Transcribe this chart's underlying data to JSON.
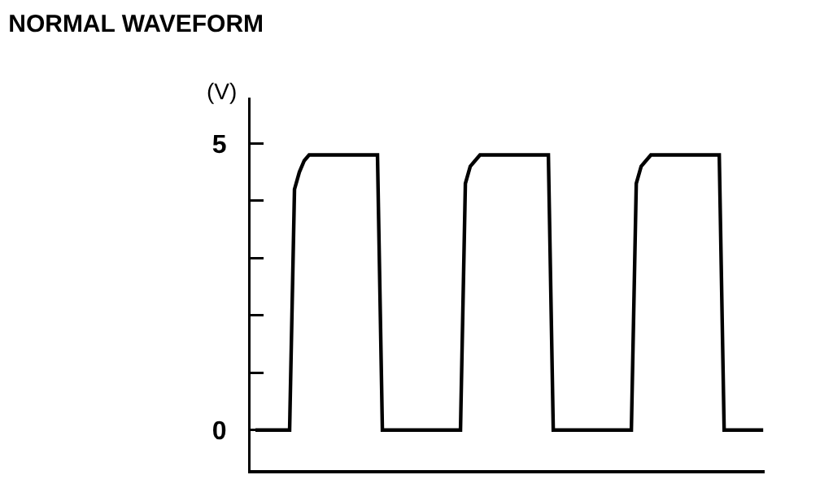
{
  "chart_data": {
    "type": "line",
    "title": "NORMAL WAVEFORM",
    "ylabel": "(V)",
    "categories": [
      null,
      null,
      null,
      null,
      null,
      null,
      null,
      null,
      null,
      null,
      null,
      null,
      null,
      null,
      null,
      null,
      null,
      null,
      null,
      null,
      null,
      null,
      null,
      null,
      null,
      null,
      null,
      null,
      null,
      null,
      null,
      null,
      null,
      null,
      null,
      null,
      null,
      null,
      null,
      null,
      null,
      null,
      null,
      null,
      null,
      null,
      null,
      null,
      null,
      null,
      null,
      null,
      null,
      null,
      null,
      null,
      null,
      null,
      null,
      null,
      null,
      null,
      null,
      null,
      null,
      null,
      null,
      null,
      null,
      null,
      null,
      null,
      null,
      null,
      null,
      null,
      null,
      null,
      null,
      null,
      null,
      null,
      null,
      null,
      null,
      null,
      null,
      null,
      null,
      null,
      null,
      null,
      null,
      null,
      null,
      null,
      null,
      null,
      null,
      null,
      null,
      null,
      null,
      null,
      null
    ],
    "series": [
      {
        "color": "#000000",
        "values": [
          0,
          0,
          0,
          0,
          0,
          0,
          0,
          0,
          4.2,
          4.5,
          4.7,
          4.8,
          4.8,
          4.8,
          4.8,
          4.8,
          4.8,
          4.8,
          4.8,
          4.8,
          4.8,
          4.8,
          4.8,
          4.8,
          4.8,
          4.8,
          0,
          0,
          0,
          0,
          0,
          0,
          0,
          0,
          0,
          0,
          0,
          0,
          0,
          0,
          0,
          0,
          0,
          4.3,
          4.6,
          4.7,
          4.8,
          4.8,
          4.8,
          4.8,
          4.8,
          4.8,
          4.8,
          4.8,
          4.8,
          4.8,
          4.8,
          4.8,
          4.8,
          4.8,
          4.8,
          0,
          0,
          0,
          0,
          0,
          0,
          0,
          0,
          0,
          0,
          0,
          0,
          0,
          0,
          0,
          0,
          0,
          4.3,
          4.6,
          4.7,
          4.8,
          4.8,
          4.8,
          4.8,
          4.8,
          4.8,
          4.8,
          4.8,
          4.8,
          4.8,
          4.8,
          4.8,
          4.8,
          4.8,
          4.8,
          0,
          0,
          0,
          0,
          0,
          0,
          0,
          0,
          0
        ]
      }
    ],
    "ylim": [
      -0.7,
      5.8
    ],
    "yticks": [
      0,
      {
        "value": 1,
        "label": null
      },
      {
        "value": 2,
        "label": null
      },
      {
        "value": 3,
        "label": null
      },
      {
        "value": 4,
        "label": null
      },
      5
    ],
    "tick_labels": "y",
    "marker": "none",
    "line_style": "solid"
  }
}
